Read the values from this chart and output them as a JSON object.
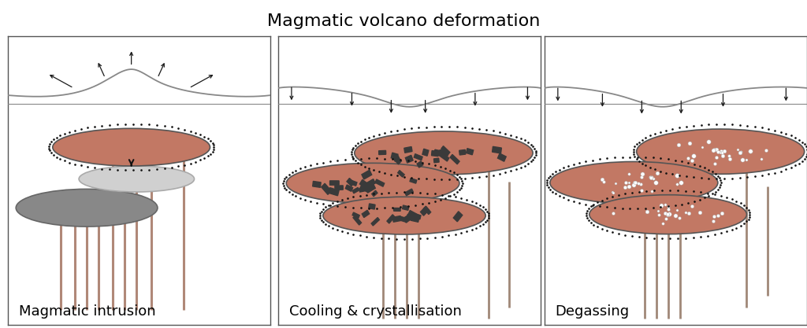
{
  "title": "Magmatic volcano deformation",
  "title_fontsize": 16,
  "labels": [
    "Magmatic intrusion",
    "Cooling & crystallisation",
    "Degassing"
  ],
  "label_fontsize": 13,
  "magma_color": "#c27864",
  "grey_dark": "#7a7a7a",
  "grey_light": "#c8c8c8",
  "pipe_color": "#b08878",
  "pipe_grey": "#9a9a9a",
  "surface_color": "#888888",
  "arrow_color": "#1a1a1a",
  "crystal_color": "#3a3a3a",
  "bubble_color": "#ffffff",
  "dot_color": "#1a1a1a",
  "border_color": "#555555"
}
